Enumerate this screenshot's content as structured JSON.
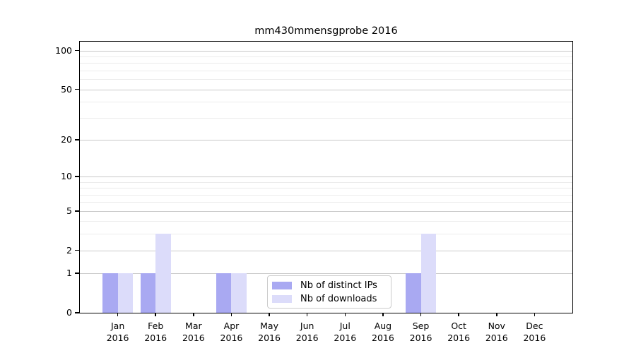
{
  "title": "mm430mmensgprobe 2016",
  "chart_data": {
    "type": "bar",
    "title": "mm430mmensgprobe 2016",
    "categories": [
      "Jan",
      "Feb",
      "Mar",
      "Apr",
      "May",
      "Jun",
      "Jul",
      "Aug",
      "Sep",
      "Oct",
      "Nov",
      "Dec"
    ],
    "year": "2016",
    "series": [
      {
        "name": "Nb of distinct IPs",
        "color": "#a9a9f2",
        "values": [
          1,
          1,
          0,
          1,
          0,
          0,
          0,
          0,
          1,
          0,
          0,
          0
        ]
      },
      {
        "name": "Nb of downloads",
        "color": "#dcdcfa",
        "values": [
          1,
          3,
          0,
          1,
          0,
          0,
          0,
          0,
          3,
          0,
          0,
          0
        ]
      }
    ],
    "y_scale": "log10(1+v)",
    "y_major_ticks": [
      0,
      1,
      2,
      5,
      10,
      20,
      50,
      100
    ],
    "y_minor_ticks": [
      3,
      4,
      6,
      7,
      8,
      9,
      30,
      40,
      60,
      70,
      80,
      90
    ],
    "ylim": [
      0,
      117
    ],
    "grid": true,
    "legend_position": "bottom-center",
    "xlabel": "",
    "ylabel": ""
  },
  "colors": {
    "major_grid": "#c9c9c9",
    "minor_grid": "#ececec",
    "axis": "#000000",
    "background": "#ffffff",
    "legend_border": "#cccccc"
  }
}
